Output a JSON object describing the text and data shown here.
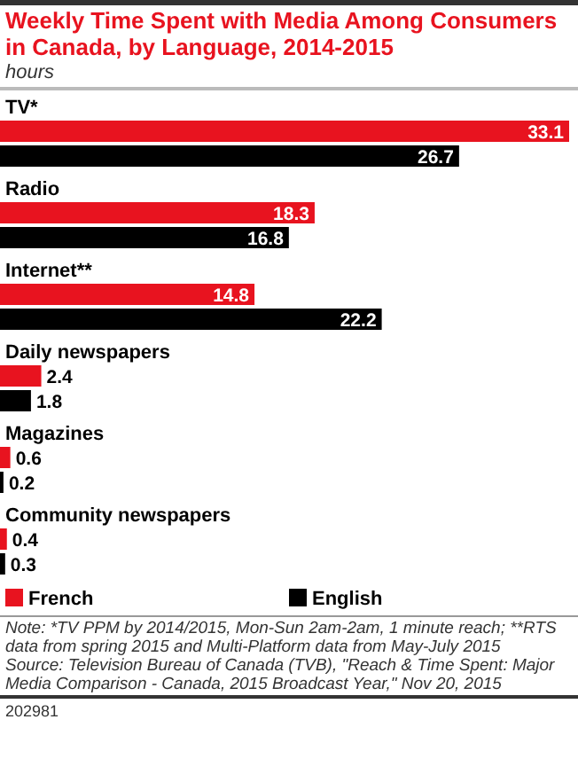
{
  "chart_data": {
    "type": "bar",
    "orientation": "horizontal",
    "title": "Weekly Time Spent with Media Among Consumers in Canada, by Language, 2014-2015",
    "subtitle": "hours",
    "categories": [
      "TV*",
      "Radio",
      "Internet**",
      "Daily newspapers",
      "Magazines",
      "Community newspapers"
    ],
    "series": [
      {
        "name": "French",
        "color": "#e8131f",
        "values": [
          33.1,
          18.3,
          14.8,
          2.4,
          0.6,
          0.4
        ]
      },
      {
        "name": "English",
        "color": "#000000",
        "values": [
          26.7,
          16.8,
          22.2,
          1.8,
          0.2,
          0.3
        ]
      }
    ],
    "data_labels": true,
    "legend": "bottom",
    "annotations": [
      "Note: *TV PPM by 2014/2015, Mon-Sun 2am-2am, 1 minute reach; **RTS data from spring 2015 and Multi-Platform data from May-July 2015",
      "Source: Television Bureau of Canada (TVB), \"Reach & Time Spent: Major Media Comparison - Canada, 2015 Broadcast Year,\" Nov 20, 2015",
      "202981"
    ]
  }
}
